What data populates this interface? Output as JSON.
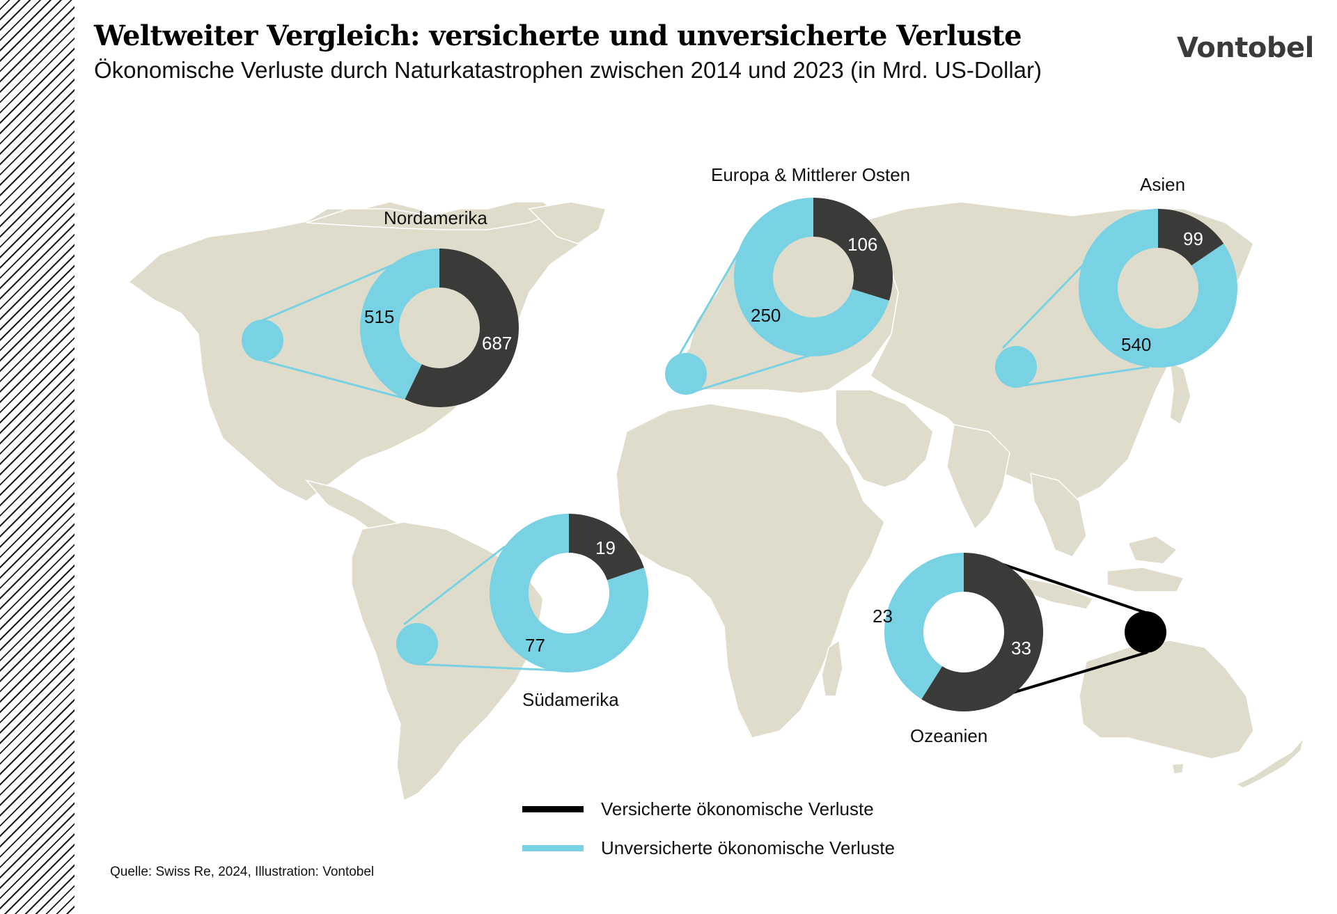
{
  "header": {
    "title": "Weltweiter Vergleich: versicherte und unversicherte Verluste",
    "subtitle": "Ökonomische Verluste durch Naturkatastrophen zwischen 2014 und 2023 (in Mrd. US-Dollar)",
    "logo": "Vontobel"
  },
  "colors": {
    "insured": "#3a3b38",
    "uninsured": "#78d2e4",
    "map_land": "#e0dccb",
    "legend_insured": "#000000"
  },
  "regions": [
    {
      "name": "Nordamerika",
      "insured": 687,
      "uninsured": 515
    },
    {
      "name": "Europa & Mittlerer Osten",
      "insured": 106,
      "uninsured": 250
    },
    {
      "name": "Asien",
      "insured": 99,
      "uninsured": 540
    },
    {
      "name": "Südamerika",
      "insured": 19,
      "uninsured": 77
    },
    {
      "name": "Ozeanien",
      "insured": 33,
      "uninsured": 23
    }
  ],
  "legend": {
    "insured_label": "Versicherte ökonomische Verluste",
    "uninsured_label": "Unversicherte ökonomische Verluste"
  },
  "source": "Quelle: Swiss Re, 2024, Illustration: Vontobel",
  "chart_data": {
    "type": "pie",
    "subtype": "donut",
    "title": "Weltweiter Vergleich: versicherte und unversicherte Verluste",
    "subtitle": "Ökonomische Verluste durch Naturkatastrophen zwischen 2014 und 2023 (in Mrd. US-Dollar)",
    "unit": "Mrd. US-Dollar",
    "categories": [
      "Nordamerika",
      "Europa & Mittlerer Osten",
      "Asien",
      "Südamerika",
      "Ozeanien"
    ],
    "series": [
      {
        "name": "Versicherte ökonomische Verluste",
        "color": "#3a3b38",
        "values": [
          687,
          106,
          99,
          19,
          33
        ]
      },
      {
        "name": "Unversicherte ökonomische Verluste",
        "color": "#78d2e4",
        "values": [
          515,
          250,
          540,
          77,
          23
        ]
      }
    ],
    "legend_position": "bottom-center",
    "background": "world map",
    "source": "Quelle: Swiss Re, 2024, Illustration: Vontobel"
  }
}
